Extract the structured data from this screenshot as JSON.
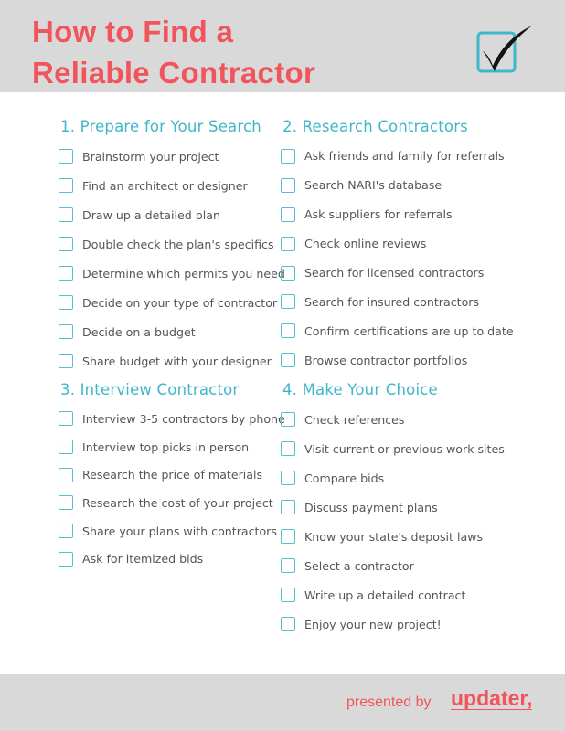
{
  "header": {
    "title_line1": "How to Find a",
    "title_line2": "Reliable Contractor",
    "icon": "checkmark-box-icon"
  },
  "sections": [
    {
      "heading": "1. Prepare for Your Search",
      "items": [
        "Brainstorm your project",
        "Find an architect or designer",
        "Draw up a detailed plan",
        "Double check the plan's specifics",
        "Determine which permits you need",
        "Decide on your type of contractor",
        "Decide on a budget",
        "Share budget with your designer"
      ]
    },
    {
      "heading": "2. Research Contractors",
      "items": [
        "Ask friends and family for referrals",
        "Search NARI's database",
        "Ask suppliers for referrals",
        "Check online reviews",
        "Search for licensed contractors",
        "Search for insured contractors",
        "Confirm certifications are up to date",
        "Browse contractor portfolios"
      ]
    },
    {
      "heading": "3. Interview Contractor",
      "items": [
        "Interview 3-5 contractors by phone",
        "Interview top picks in person",
        "Research the price of materials",
        "Research the cost of your project",
        "Share your plans with contractors",
        "Ask for itemized bids"
      ]
    },
    {
      "heading": "4. Make Your Choice",
      "items": [
        "Check references",
        "Visit current or previous work sites",
        "Compare bids",
        "Discuss payment plans",
        "Know your state's deposit laws",
        "Select a contractor",
        "Write up a detailed contract",
        "Enjoy your new project!"
      ]
    }
  ],
  "footer": {
    "presented_by": "presented by",
    "brand": "updater,"
  },
  "colors": {
    "title": "#f2545b",
    "heading": "#3fb6c9",
    "checkbox": "#55bfd0",
    "band": "#d9d9d9"
  }
}
